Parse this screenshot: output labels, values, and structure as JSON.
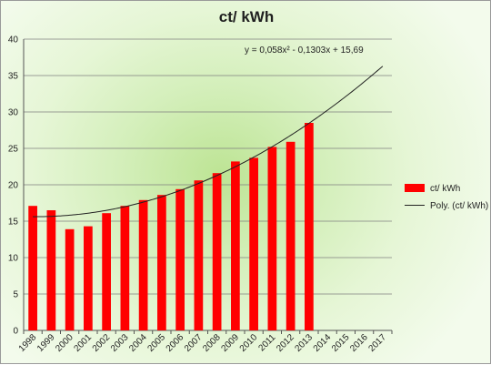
{
  "chart_data": {
    "type": "bar",
    "title": "ct/ kWh",
    "xlabel": "",
    "ylabel": "",
    "categories": [
      "1998",
      "1999",
      "2000",
      "2001",
      "2002",
      "2003",
      "2004",
      "2005",
      "2006",
      "2007",
      "2008",
      "2009",
      "2010",
      "2011",
      "2012",
      "2013",
      "2014",
      "2015",
      "2016",
      "2017"
    ],
    "series": [
      {
        "name": "ct/ kWh",
        "type": "bar",
        "color": "#ff0000",
        "values": [
          17.1,
          16.5,
          13.9,
          14.3,
          16.1,
          17.1,
          17.9,
          18.6,
          19.4,
          20.6,
          21.6,
          23.2,
          23.7,
          25.2,
          25.9,
          28.5,
          null,
          null,
          null,
          null
        ]
      },
      {
        "name": "Poly. (ct/ kWh)",
        "type": "trendline",
        "color": "#222222",
        "coefficients": {
          "a": 0.058,
          "b": -0.1303,
          "c": 15.69
        }
      }
    ],
    "trendline_equation": "y = 0,058x² - 0,1303x + 15,69",
    "ylim": [
      0,
      40
    ],
    "yticks": [
      0,
      5,
      10,
      15,
      20,
      25,
      30,
      35,
      40
    ],
    "grid": true,
    "legend_position": "right"
  }
}
